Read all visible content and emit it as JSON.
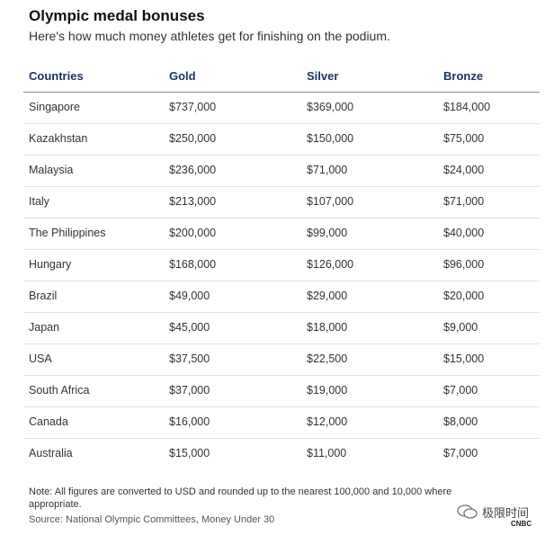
{
  "header": {
    "title": "Olympic medal bonuses",
    "subtitle": "Here's how much money athletes get for finishing on the podium."
  },
  "table": {
    "columns": [
      "Countries",
      "Gold",
      "Silver",
      "Bronze"
    ],
    "rows": [
      [
        "Singapore",
        "$737,000",
        "$369,000",
        "$184,000"
      ],
      [
        "Kazakhstan",
        "$250,000",
        "$150,000",
        "$75,000"
      ],
      [
        "Malaysia",
        "$236,000",
        "$71,000",
        "$24,000"
      ],
      [
        "Italy",
        "$213,000",
        "$107,000",
        "$71,000"
      ],
      [
        "The Philippines",
        "$200,000",
        "$99,000",
        "$40,000"
      ],
      [
        "Hungary",
        "$168,000",
        "$126,000",
        "$96,000"
      ],
      [
        "Brazil",
        "$49,000",
        "$29,000",
        "$20,000"
      ],
      [
        "Japan",
        "$45,000",
        "$18,000",
        "$9,000"
      ],
      [
        "USA",
        "$37,500",
        "$22,500",
        "$15,000"
      ],
      [
        "South Africa",
        "$37,000",
        "$19,000",
        "$7,000"
      ],
      [
        "Canada",
        "$16,000",
        "$12,000",
        "$8,000"
      ],
      [
        "Australia",
        "$15,000",
        "$11,000",
        "$7,000"
      ]
    ]
  },
  "footer": {
    "note": "Note: All figures are converted to USD and rounded up to the nearest 100,000 and 10,000 where appropriate.",
    "source": "Source: National Olympic Committees, Money Under 30"
  },
  "watermark": {
    "text": "极限时间",
    "logo": "CNBC"
  }
}
